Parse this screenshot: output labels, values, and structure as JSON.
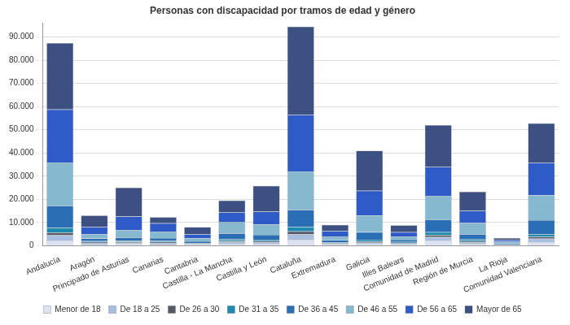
{
  "chart_data": {
    "type": "bar",
    "title": "Personas con discapacidad por tramos de edad y género",
    "stacked": true,
    "grid": true,
    "legend": "bottom",
    "categories": [
      "Andalucía",
      "Aragón",
      "Principado de Asturias",
      "Canarias",
      "Cantabria",
      "Castilla - La Mancha",
      "Castilla y León",
      "Cataluña",
      "Extremadura",
      "Galicia",
      "Illes Balears",
      "Comunidad de Madrid",
      "Región de Murcia",
      "La Rioja",
      "Comunidad Valenciana"
    ],
    "ylim": [
      0,
      96000
    ],
    "yticks": [
      0,
      {
        "value": 10000,
        "label": "10.000"
      },
      {
        "value": 20000,
        "label": "20.000"
      },
      {
        "value": 30000,
        "label": "30.000"
      },
      {
        "value": 40000,
        "label": "40.000"
      },
      {
        "value": 50000,
        "label": "50.000"
      },
      {
        "value": 60000,
        "label": "60.000"
      },
      {
        "value": 70000,
        "label": "70.000"
      },
      {
        "value": 80000,
        "label": "80.000"
      },
      {
        "value": 90000,
        "label": "90.000"
      }
    ],
    "series": [
      {
        "name": "Menor de 18",
        "color": "#dde3f0",
        "values": [
          2000,
          500,
          600,
          500,
          300,
          700,
          600,
          2500,
          300,
          600,
          400,
          2000,
          700,
          100,
          1500
        ]
      },
      {
        "name": "De 18 a 25",
        "color": "#a9bfdf",
        "values": [
          2500,
          700,
          700,
          700,
          400,
          900,
          900,
          2500,
          500,
          700,
          500,
          1700,
          800,
          200,
          1500
        ]
      },
      {
        "name": "De 26 a 30",
        "color": "#555a66",
        "values": [
          1200,
          400,
          400,
          400,
          200,
          500,
          500,
          1200,
          300,
          500,
          300,
          900,
          500,
          100,
          800
        ]
      },
      {
        "name": "De 31 a 35",
        "color": "#1f8ab0",
        "values": [
          2000,
          400,
          500,
          500,
          300,
          700,
          600,
          1800,
          300,
          800,
          400,
          1200,
          700,
          100,
          1200
        ]
      },
      {
        "name": "De 36 a 45",
        "color": "#2a6fb5",
        "values": [
          9500,
          1100,
          1400,
          1200,
          700,
          2500,
          2100,
          7500,
          1000,
          3200,
          1000,
          5500,
          2300,
          400,
          6000
        ]
      },
      {
        "name": "De 46 a 55",
        "color": "#86b8cf",
        "values": [
          18700,
          1800,
          3000,
          2800,
          1300,
          4800,
          4500,
          16500,
          1600,
          7200,
          1400,
          10200,
          4800,
          800,
          10800
        ]
      },
      {
        "name": "De 56 a 65",
        "color": "#2f5bc8",
        "values": [
          22800,
          3100,
          6000,
          3600,
          1800,
          4300,
          5500,
          24500,
          2300,
          10700,
          1800,
          12500,
          5200,
          800,
          14000
        ]
      },
      {
        "name": "Mayor de 65",
        "color": "#3d5082",
        "values": [
          28700,
          5000,
          12400,
          2600,
          3000,
          5100,
          11100,
          38000,
          2700,
          17300,
          3000,
          18000,
          8300,
          800,
          17000
        ]
      }
    ]
  }
}
